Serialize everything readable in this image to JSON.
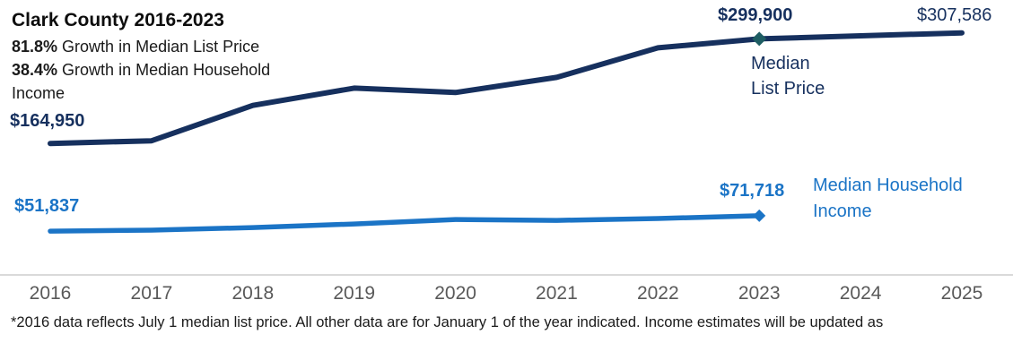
{
  "header": {
    "subtitle_lines": [
      {
        "bold": "81.8%",
        "rest": " Growth in Median List Price"
      },
      {
        "bold": "38.4%",
        "rest": " Growth in Median Household Income"
      }
    ]
  },
  "chart_data": {
    "type": "line",
    "title": "Clark County 2016-2023",
    "x": [
      2016,
      2017,
      2018,
      2019,
      2020,
      2021,
      2022,
      2023,
      2024,
      2025
    ],
    "x_tick_labels": [
      "2016",
      "2017",
      "2018",
      "2019",
      "2020",
      "2021",
      "2022",
      "2023",
      "2024",
      "2025"
    ],
    "xlim": [
      2016,
      2025
    ],
    "ylim": [
      0,
      350000
    ],
    "grid": false,
    "legend_position": "inline-right",
    "series": [
      {
        "name": "Median List Price",
        "color": "#16305E",
        "x": [
          2016,
          2017,
          2018,
          2019,
          2020,
          2021,
          2022,
          2023,
          2024,
          2025
        ],
        "values": [
          164950,
          168400,
          214100,
          236300,
          230700,
          250200,
          288300,
          299900,
          303800,
          307586
        ],
        "marker": {
          "x": 2023,
          "color": "#1E5D63"
        },
        "point_labels": [
          {
            "x": 2016,
            "text": "$164,950"
          },
          {
            "x": 2023,
            "text": "$299,900"
          },
          {
            "x": 2025,
            "text": "$307,586"
          }
        ]
      },
      {
        "name": "Median Household Income",
        "color": "#1B74C6",
        "x": [
          2016,
          2017,
          2018,
          2019,
          2020,
          2021,
          2022,
          2023
        ],
        "values": [
          51837,
          53100,
          56500,
          61100,
          66900,
          65700,
          68100,
          71718
        ],
        "marker": {
          "x": 2023,
          "color": "#1B74C6"
        },
        "point_labels": [
          {
            "x": 2016,
            "text": "$51,837"
          },
          {
            "x": 2023,
            "text": "$71,718"
          }
        ]
      }
    ],
    "axis_colors": {
      "line": "#D9D9D9",
      "tick_text": "#595959"
    }
  },
  "footnote": "*2016 data reflects July 1 median list price. All other data are for January 1 of the year indicated. Income estimates will be updated as"
}
